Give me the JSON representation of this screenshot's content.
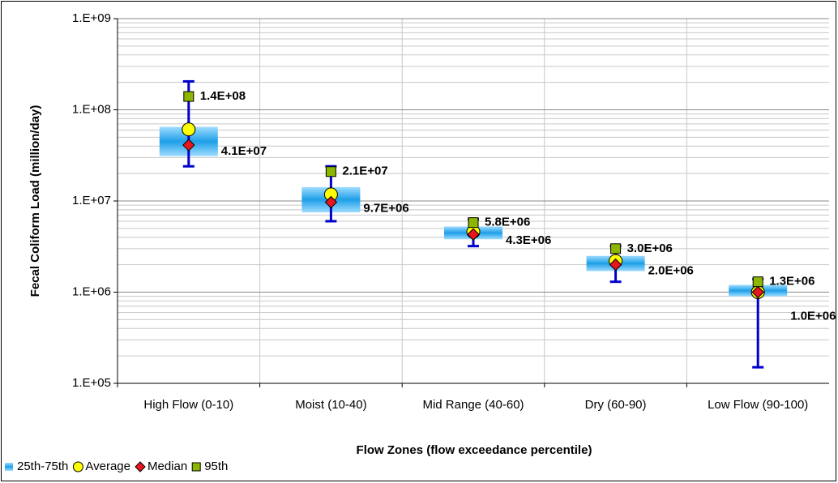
{
  "chart_data": {
    "type": "box",
    "x_label": "Flow Zones (flow exceedance percentile)",
    "y_label": "Fecal Coliform Load (million/day)",
    "categories": [
      "High Flow (0-10)",
      "Moist (10-40)",
      "Mid Range (40-60)",
      "Dry (60-90)",
      "Low Flow (90-100)"
    ],
    "log_scale": true,
    "grid": true,
    "legend": "bottom-left",
    "ylim": [
      100000,
      1000000000
    ],
    "yticks": [
      {
        "value": 100000,
        "label": "1.E+05"
      },
      {
        "value": 1000000,
        "label": "1.E+06"
      },
      {
        "value": 10000000,
        "label": "1.E+07"
      },
      {
        "value": 100000000,
        "label": "1.E+08"
      },
      {
        "value": 1000000000,
        "label": "1.E+09"
      }
    ],
    "whiskers": {
      "color": "#0000cc",
      "low": [
        24000000,
        6000000,
        3200000,
        1300000,
        150000
      ],
      "high": [
        205000000,
        24000000,
        6300000,
        3200000,
        1390000
      ]
    },
    "series": [
      {
        "name": "25th-75th",
        "color": "#1e9fe8",
        "q1": [
          31000000,
          7500000,
          3800000,
          1700000,
          900000
        ],
        "q3": [
          65000000,
          14200000,
          5250000,
          2500000,
          1200000
        ]
      },
      {
        "name": "Average",
        "color": "#ffff00",
        "values": [
          61000000,
          11800000,
          4600000,
          2200000,
          1000000
        ]
      },
      {
        "name": "Median",
        "color": "#e8141e",
        "values": [
          41000000,
          9700000,
          4300000,
          2000000,
          1000000
        ],
        "value_labels": [
          "4.1E+07",
          "9.7E+06",
          "4.3E+06",
          "2.0E+06",
          "1.0E+06"
        ]
      },
      {
        "name": "95th",
        "color": "#8db600",
        "values": [
          140000000,
          21000000,
          5800000,
          3000000,
          1300000
        ],
        "value_labels": [
          "1.4E+08",
          "2.1E+07",
          "5.8E+06",
          "3.0E+06",
          "1.3E+06"
        ]
      }
    ]
  }
}
